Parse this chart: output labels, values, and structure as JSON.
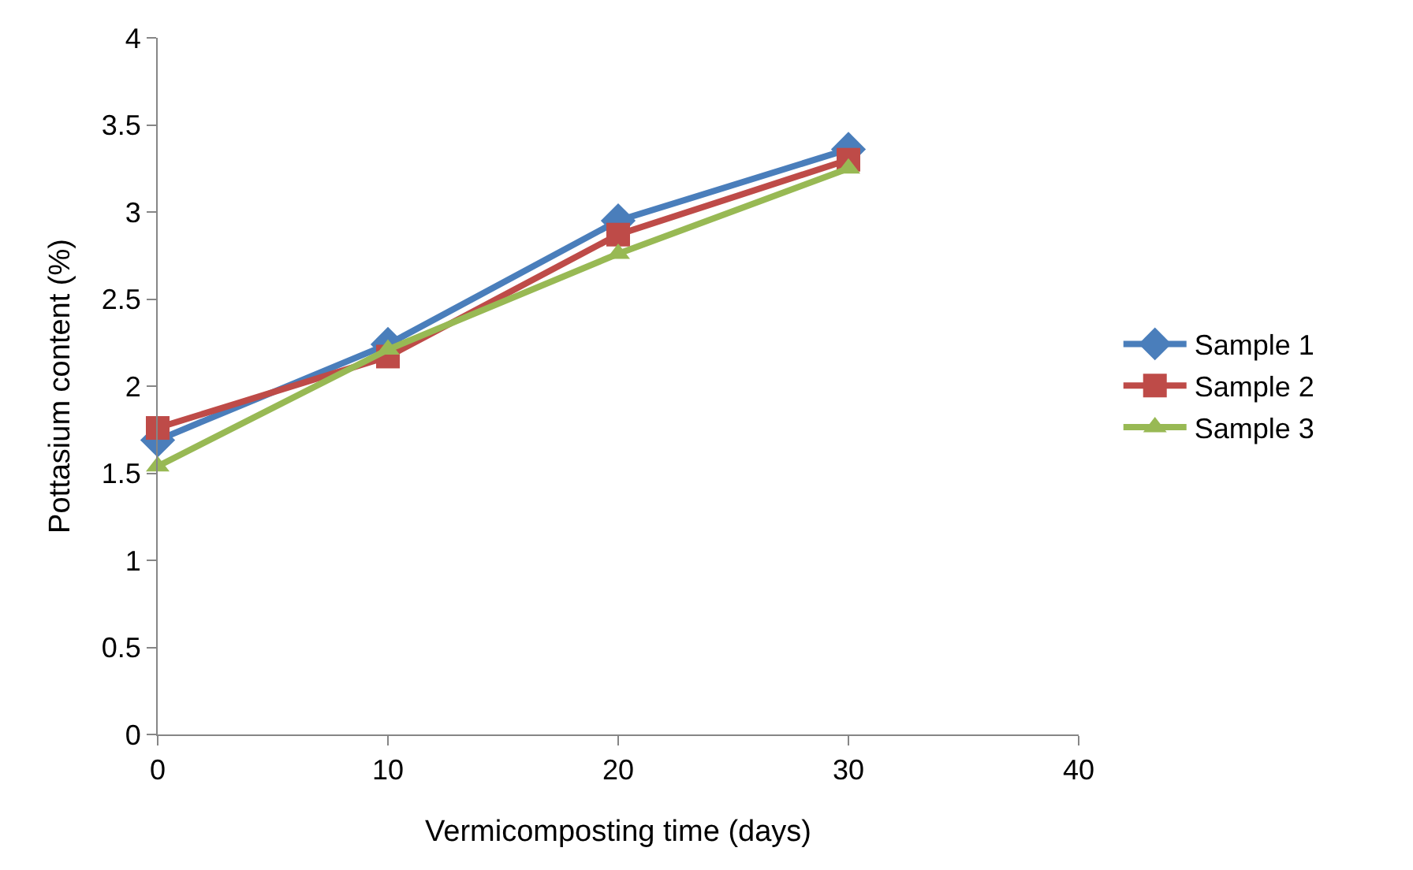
{
  "chart_data": {
    "type": "line",
    "xlabel": "Vermicomposting time (days)",
    "ylabel": "Pottasium content (%)",
    "x": [
      0,
      10,
      20,
      30
    ],
    "series": [
      {
        "name": "Sample 1",
        "color": "#4a7ebb",
        "marker": "diamond",
        "values": [
          1.69,
          2.24,
          2.95,
          3.36
        ]
      },
      {
        "name": "Sample 2",
        "color": "#be4b48",
        "marker": "square",
        "values": [
          1.76,
          2.17,
          2.87,
          3.3
        ]
      },
      {
        "name": "Sample 3",
        "color": "#98b954",
        "marker": "triangle",
        "values": [
          1.54,
          2.21,
          2.76,
          3.25
        ]
      }
    ],
    "xlim": [
      0,
      40
    ],
    "xticks": [
      0,
      10,
      20,
      30,
      40
    ],
    "ylim": [
      0,
      4
    ],
    "yticks": [
      0,
      0.5,
      1,
      1.5,
      2,
      2.5,
      3,
      3.5,
      4
    ],
    "grid": false,
    "legend": "right",
    "line_style": "solid"
  }
}
